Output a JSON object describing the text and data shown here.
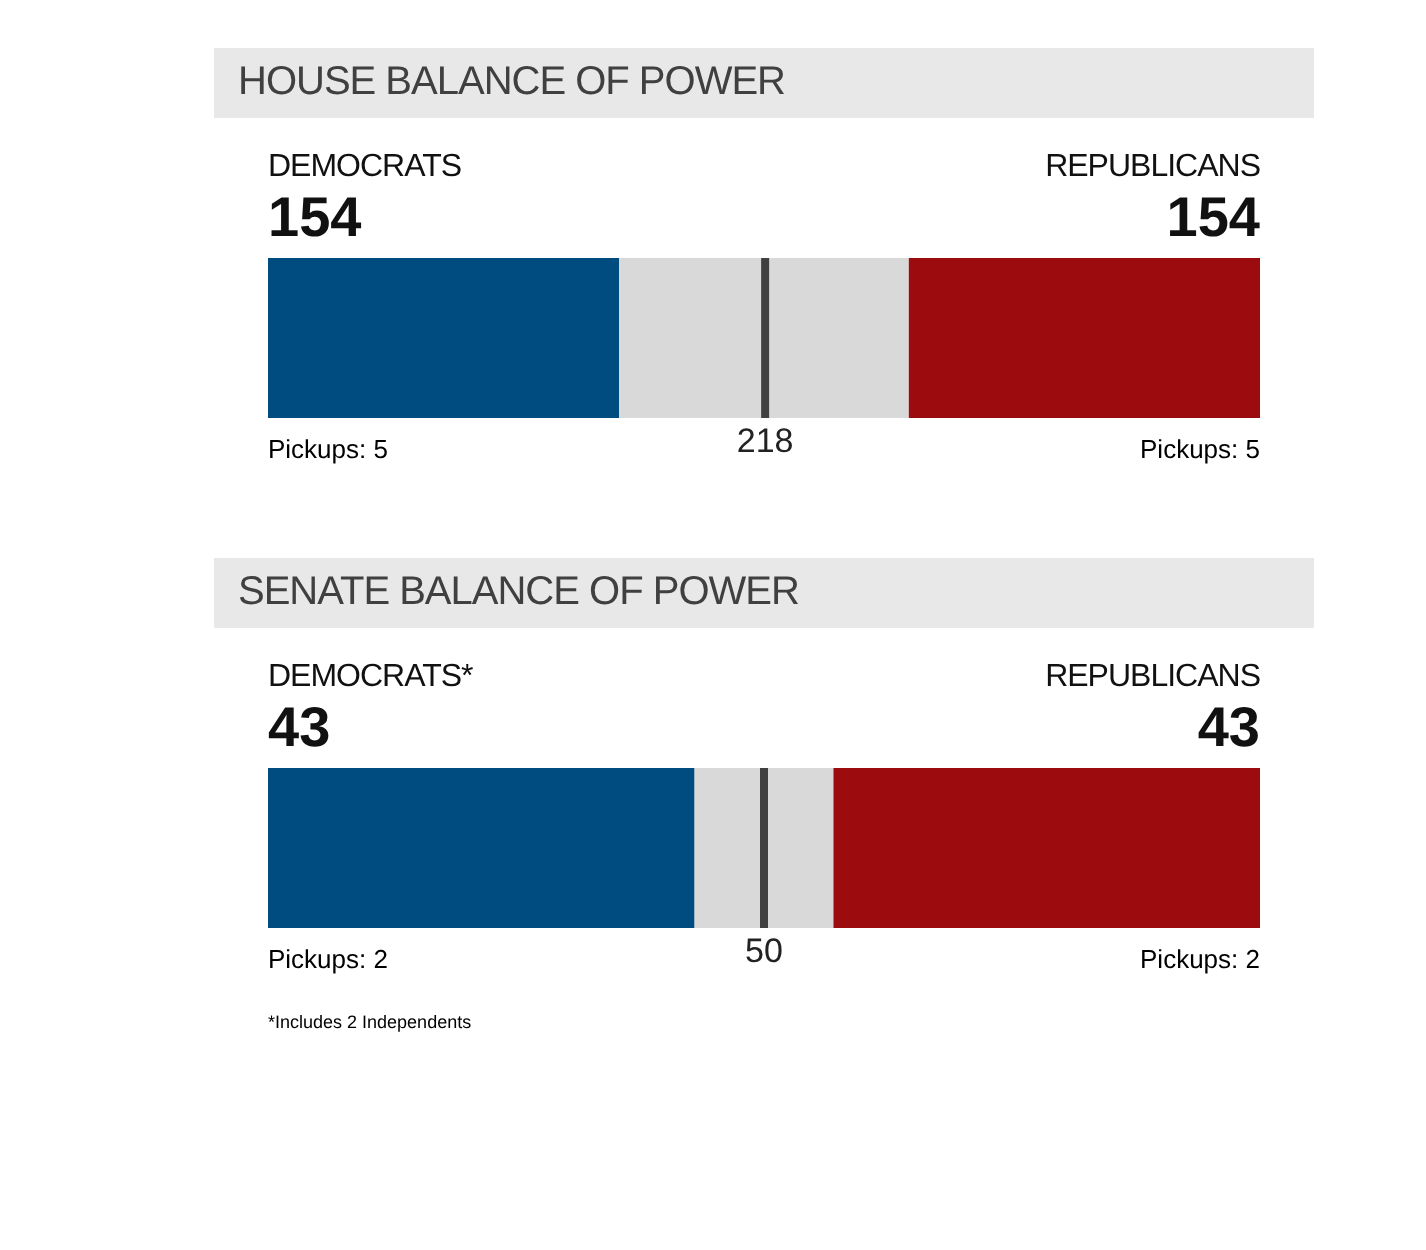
{
  "chart_data": [
    {
      "type": "bar",
      "title": "HOUSE BALANCE OF POWER",
      "orientation": "horizontal",
      "stacked": true,
      "categories": [
        null
      ],
      "xlim": [
        0,
        435
      ],
      "tick_labels": false,
      "series": [
        {
          "name": "DEMOCRATS",
          "color": "#004b80",
          "values": [
            154
          ],
          "value_labels": [
            "154"
          ]
        },
        {
          "color": "#d9d9d9",
          "values": [
            127
          ]
        },
        {
          "name": "REPUBLICANS",
          "color": "#9c0c0f",
          "values": [
            154
          ],
          "value_labels": [
            "154"
          ]
        }
      ],
      "ref_lines": [
        {
          "axis": "x",
          "value": 218,
          "label": "218",
          "color": "#404040"
        }
      ],
      "annotations": [
        "Pickups: 5",
        "Pickups: 5"
      ]
    },
    {
      "type": "bar",
      "title": "SENATE BALANCE OF POWER",
      "orientation": "horizontal",
      "stacked": true,
      "categories": [
        null
      ],
      "xlim": [
        0,
        100
      ],
      "tick_labels": false,
      "series": [
        {
          "name": "DEMOCRATS*",
          "color": "#004b80",
          "values": [
            43
          ],
          "value_labels": [
            "43"
          ]
        },
        {
          "color": "#d9d9d9",
          "values": [
            14
          ]
        },
        {
          "name": "REPUBLICANS",
          "color": "#9c0c0f",
          "values": [
            43
          ],
          "value_labels": [
            "43"
          ]
        }
      ],
      "ref_lines": [
        {
          "axis": "x",
          "value": 50,
          "label": "50",
          "color": "#404040"
        }
      ],
      "annotations": [
        "Pickups: 2",
        "Pickups: 2",
        "*Includes 2 Independents"
      ]
    }
  ]
}
